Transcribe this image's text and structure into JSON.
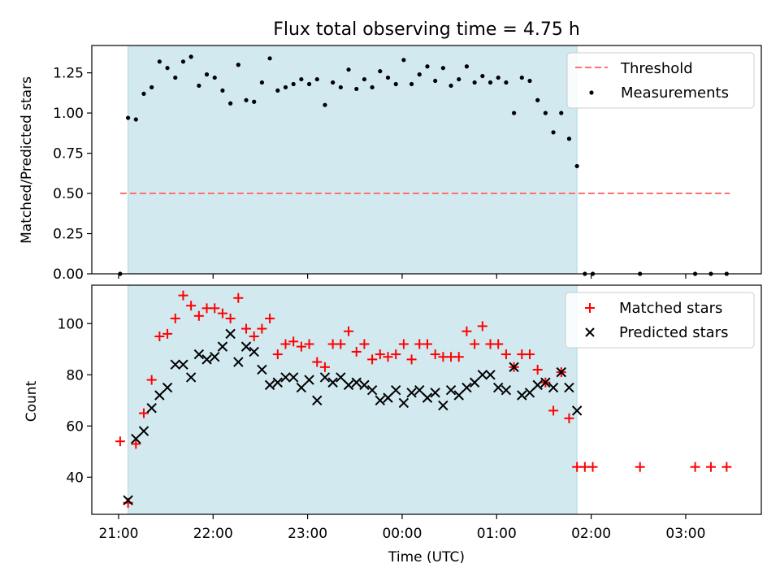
{
  "figure": {
    "title": "Flux total observing time = 4.75 h"
  },
  "colors": {
    "shade": "#d2e9f0",
    "shade_edge": "#add8e6",
    "threshold": "#ff7070",
    "measurement": "#000000",
    "matched": "#ff0000",
    "predicted": "#000000"
  },
  "chart_data": [
    {
      "type": "scatter",
      "panel": "top",
      "title": "Flux total observing time = 4.75 h",
      "xlabel": "",
      "ylabel": "Matched/Predicted stars",
      "xlim": [
        "20:43",
        "03:48"
      ],
      "ylim": [
        0,
        1.42
      ],
      "x_is_time": true,
      "y_ticks": [
        "0.00",
        "0.25",
        "0.50",
        "0.75",
        "1.00",
        "1.25"
      ],
      "y_tick_values": [
        0,
        0.25,
        0.5,
        0.75,
        1.0,
        1.25
      ],
      "legend": "top-right",
      "legend_entries": [
        "Threshold",
        "Measurements"
      ],
      "shaded_span": {
        "start": "21:06",
        "end": "01:51"
      },
      "threshold": {
        "name": "Threshold",
        "value": 0.5,
        "x_start": "21:01",
        "x_end": "03:28"
      },
      "series": [
        {
          "name": "Measurements",
          "x": [
            "21:01",
            "21:06",
            "21:11",
            "21:16",
            "21:21",
            "21:26",
            "21:31",
            "21:36",
            "21:41",
            "21:46",
            "21:51",
            "21:56",
            "22:01",
            "22:06",
            "22:11",
            "22:16",
            "22:21",
            "22:26",
            "22:31",
            "22:36",
            "22:41",
            "22:46",
            "22:51",
            "22:56",
            "23:01",
            "23:06",
            "23:11",
            "23:16",
            "23:21",
            "23:26",
            "23:31",
            "23:36",
            "23:41",
            "23:46",
            "23:51",
            "23:56",
            "00:01",
            "00:06",
            "00:11",
            "00:16",
            "00:21",
            "00:26",
            "00:31",
            "00:36",
            "00:41",
            "00:46",
            "00:51",
            "00:56",
            "01:01",
            "01:06",
            "01:11",
            "01:16",
            "01:21",
            "01:26",
            "01:31",
            "01:36",
            "01:41",
            "01:46",
            "01:51",
            "01:56",
            "02:01",
            "02:31",
            "03:06",
            "03:16",
            "03:26"
          ],
          "y": [
            0.0,
            0.97,
            0.96,
            1.12,
            1.16,
            1.32,
            1.28,
            1.22,
            1.32,
            1.35,
            1.17,
            1.24,
            1.22,
            1.14,
            1.06,
            1.3,
            1.08,
            1.07,
            1.19,
            1.34,
            1.14,
            1.16,
            1.18,
            1.21,
            1.18,
            1.21,
            1.05,
            1.19,
            1.16,
            1.27,
            1.15,
            1.21,
            1.16,
            1.26,
            1.22,
            1.18,
            1.33,
            1.18,
            1.24,
            1.29,
            1.2,
            1.28,
            1.17,
            1.21,
            1.29,
            1.19,
            1.23,
            1.19,
            1.22,
            1.19,
            1.0,
            1.22,
            1.2,
            1.08,
            1.0,
            0.88,
            1.0,
            0.84,
            0.67,
            0.0,
            0.0,
            0.0,
            0.0,
            0.0,
            0.0
          ]
        }
      ]
    },
    {
      "type": "scatter",
      "panel": "bottom",
      "title": "",
      "xlabel": "Time (UTC)",
      "ylabel": "Count",
      "xlim": [
        "20:43",
        "03:48"
      ],
      "ylim": [
        25.5,
        115
      ],
      "x_is_time": true,
      "x_ticks": [
        "21:00",
        "22:00",
        "23:00",
        "00:00",
        "01:00",
        "02:00",
        "03:00"
      ],
      "y_ticks": [
        "40",
        "60",
        "80",
        "100"
      ],
      "y_tick_values": [
        40,
        60,
        80,
        100
      ],
      "legend": "top-right",
      "legend_entries": [
        "Matched stars",
        "Predicted stars"
      ],
      "shaded_span": {
        "start": "21:06",
        "end": "01:51"
      },
      "series": [
        {
          "name": "Matched stars",
          "marker": "plus",
          "x": [
            "21:01",
            "21:06",
            "21:11",
            "21:16",
            "21:21",
            "21:26",
            "21:31",
            "21:36",
            "21:41",
            "21:46",
            "21:51",
            "21:56",
            "22:01",
            "22:06",
            "22:11",
            "22:16",
            "22:21",
            "22:26",
            "22:31",
            "22:36",
            "22:41",
            "22:46",
            "22:51",
            "22:56",
            "23:01",
            "23:06",
            "23:11",
            "23:16",
            "23:21",
            "23:26",
            "23:31",
            "23:36",
            "23:41",
            "23:46",
            "23:51",
            "23:56",
            "00:01",
            "00:06",
            "00:11",
            "00:16",
            "00:21",
            "00:26",
            "00:31",
            "00:36",
            "00:41",
            "00:46",
            "00:51",
            "00:56",
            "01:01",
            "01:06",
            "01:11",
            "01:16",
            "01:21",
            "01:26",
            "01:31",
            "01:36",
            "01:41",
            "01:46",
            "01:51",
            "01:56",
            "02:01",
            "02:31",
            "03:06",
            "03:16",
            "03:26"
          ],
          "y": [
            54,
            30,
            53,
            65,
            78,
            95,
            96,
            102,
            111,
            107,
            103,
            106,
            106,
            104,
            102,
            110,
            98,
            95,
            98,
            102,
            88,
            92,
            93,
            91,
            92,
            85,
            83,
            92,
            92,
            97,
            89,
            92,
            86,
            88,
            87,
            88,
            92,
            86,
            92,
            92,
            88,
            87,
            87,
            87,
            97,
            92,
            99,
            92,
            92,
            88,
            83,
            88,
            88,
            82,
            77,
            66,
            81,
            63,
            44,
            44,
            44,
            44,
            44,
            44,
            44
          ]
        },
        {
          "name": "Predicted stars",
          "marker": "x",
          "x": [
            "21:06",
            "21:11",
            "21:16",
            "21:21",
            "21:26",
            "21:31",
            "21:36",
            "21:41",
            "21:46",
            "21:51",
            "21:56",
            "22:01",
            "22:06",
            "22:11",
            "22:16",
            "22:21",
            "22:26",
            "22:31",
            "22:36",
            "22:41",
            "22:46",
            "22:51",
            "22:56",
            "23:01",
            "23:06",
            "23:11",
            "23:16",
            "23:21",
            "23:26",
            "23:31",
            "23:36",
            "23:41",
            "23:46",
            "23:51",
            "23:56",
            "00:01",
            "00:06",
            "00:11",
            "00:16",
            "00:21",
            "00:26",
            "00:31",
            "00:36",
            "00:41",
            "00:46",
            "00:51",
            "00:56",
            "01:01",
            "01:06",
            "01:11",
            "01:16",
            "01:21",
            "01:26",
            "01:31",
            "01:36",
            "01:41",
            "01:46",
            "01:51"
          ],
          "y": [
            31,
            55,
            58,
            67,
            72,
            75,
            84,
            84,
            79,
            88,
            86,
            87,
            91,
            96,
            85,
            91,
            89,
            82,
            76,
            77,
            79,
            79,
            75,
            78,
            70,
            79,
            77,
            79,
            76,
            77,
            76,
            74,
            70,
            71,
            74,
            69,
            73,
            74,
            71,
            73,
            68,
            74,
            72,
            75,
            77,
            80,
            80,
            75,
            74,
            83,
            72,
            73,
            76,
            77,
            75,
            81,
            75,
            66
          ]
        }
      ]
    }
  ]
}
